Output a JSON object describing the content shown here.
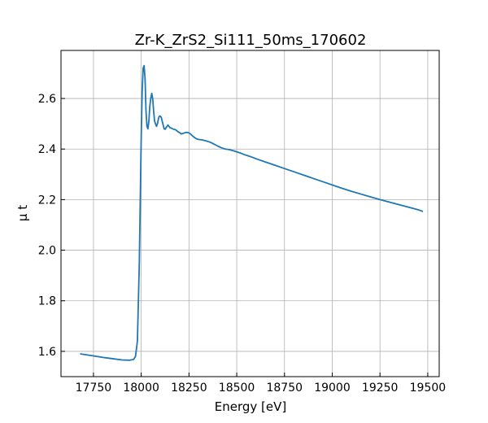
{
  "chart_data": {
    "type": "line",
    "title": "Zr-K_ZrS2_Si111_50ms_170602",
    "xlabel": "Energy [eV]",
    "ylabel": "μ t",
    "xlim": [
      17580,
      19560
    ],
    "ylim": [
      1.5,
      2.79
    ],
    "xticks": [
      17750,
      18000,
      18250,
      18500,
      18750,
      19000,
      19250,
      19500
    ],
    "yticks": [
      1.6,
      1.8,
      2.0,
      2.2,
      2.4,
      2.6
    ],
    "ytick_labels": [
      "1.6",
      "1.8",
      "2.0",
      "2.2",
      "2.4",
      "2.6"
    ],
    "grid": true,
    "colors": {
      "series": "#1f77b4"
    },
    "series": [
      {
        "x": [
          17680,
          17750,
          17800,
          17850,
          17900,
          17940,
          17960,
          17970,
          17980,
          17990,
          17995,
          18000,
          18005,
          18010,
          18015,
          18020,
          18025,
          18030,
          18035,
          18040,
          18045,
          18050,
          18055,
          18060,
          18065,
          18070,
          18075,
          18080,
          18085,
          18090,
          18095,
          18100,
          18105,
          18110,
          18115,
          18120,
          18125,
          18130,
          18135,
          18140,
          18145,
          18150,
          18155,
          18160,
          18165,
          18170,
          18175,
          18180,
          18190,
          18200,
          18210,
          18220,
          18230,
          18240,
          18250,
          18260,
          18270,
          18280,
          18290,
          18300,
          18310,
          18320,
          18330,
          18340,
          18350,
          18360,
          18370,
          18380,
          18390,
          18400,
          18420,
          18440,
          18460,
          18480,
          18500,
          18520,
          18540,
          18560,
          18580,
          18600,
          18650,
          18700,
          18750,
          18800,
          18850,
          18900,
          18950,
          19000,
          19050,
          19100,
          19150,
          19200,
          19250,
          19300,
          19350,
          19400,
          19450,
          19475
        ],
        "y": [
          1.59,
          1.582,
          1.576,
          1.571,
          1.566,
          1.565,
          1.568,
          1.58,
          1.64,
          1.95,
          2.2,
          2.45,
          2.63,
          2.72,
          2.73,
          2.68,
          2.55,
          2.49,
          2.48,
          2.51,
          2.57,
          2.6,
          2.62,
          2.6,
          2.55,
          2.51,
          2.5,
          2.49,
          2.5,
          2.52,
          2.53,
          2.53,
          2.525,
          2.51,
          2.495,
          2.48,
          2.478,
          2.485,
          2.49,
          2.495,
          2.49,
          2.485,
          2.483,
          2.482,
          2.48,
          2.478,
          2.478,
          2.476,
          2.47,
          2.465,
          2.46,
          2.462,
          2.465,
          2.466,
          2.464,
          2.458,
          2.451,
          2.445,
          2.44,
          2.438,
          2.437,
          2.436,
          2.434,
          2.432,
          2.43,
          2.427,
          2.424,
          2.42,
          2.416,
          2.412,
          2.405,
          2.4,
          2.398,
          2.394,
          2.389,
          2.384,
          2.378,
          2.373,
          2.368,
          2.362,
          2.349,
          2.336,
          2.323,
          2.31,
          2.297,
          2.284,
          2.271,
          2.258,
          2.245,
          2.233,
          2.222,
          2.211,
          2.2,
          2.19,
          2.18,
          2.17,
          2.16,
          2.153
        ]
      }
    ]
  }
}
